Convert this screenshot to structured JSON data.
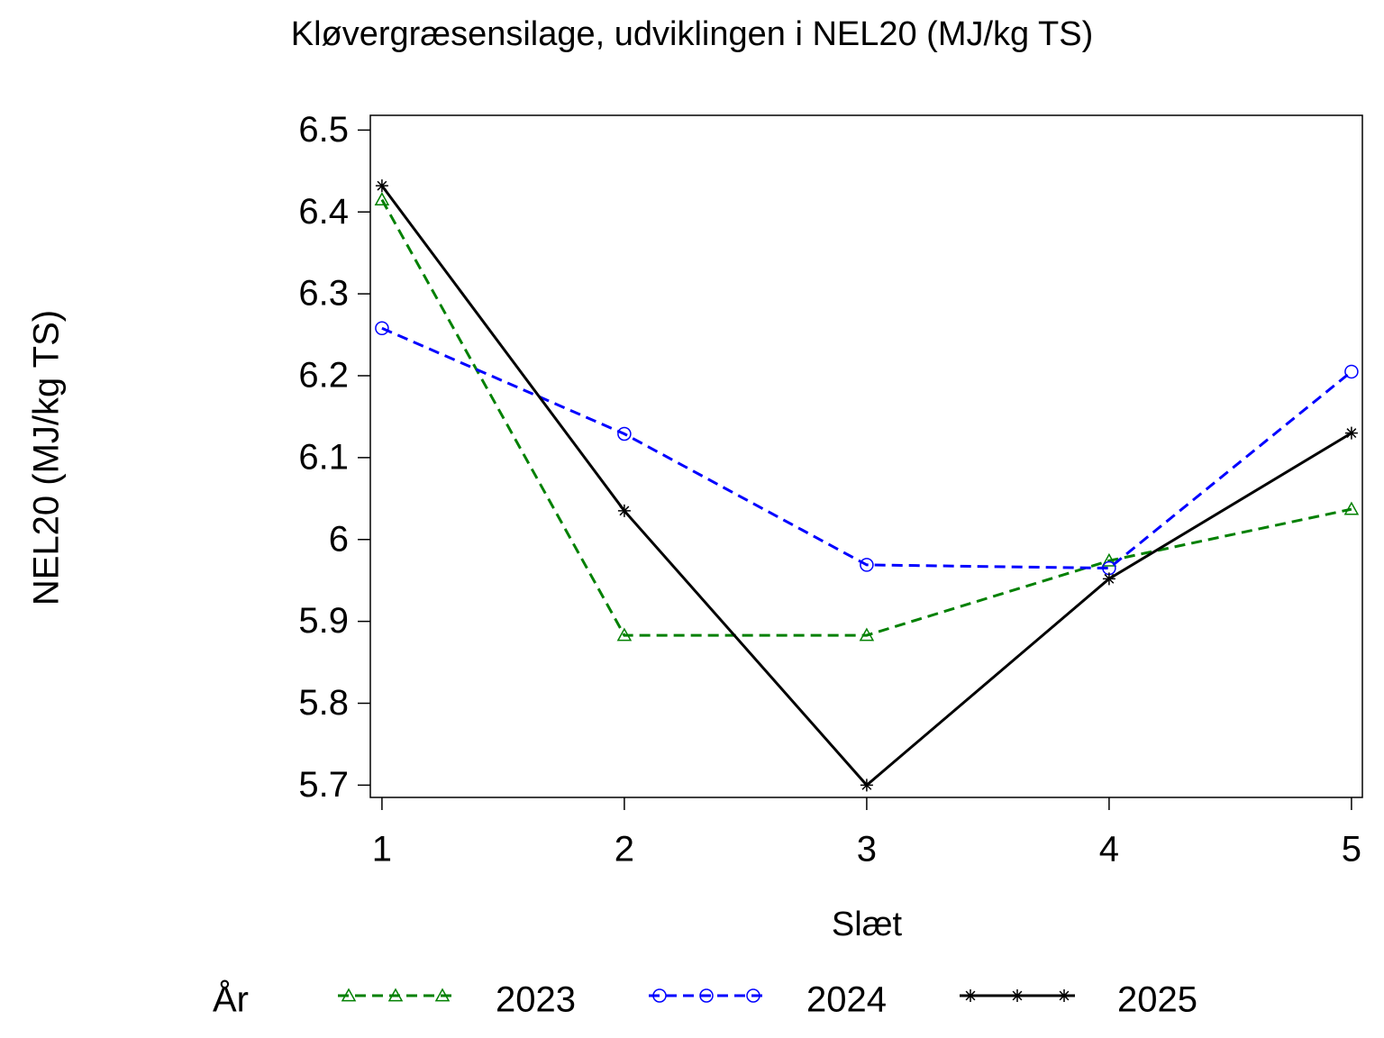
{
  "chart_data": {
    "type": "line",
    "title": "Kløvergræsensilage,  udviklingen  i  NEL20  (MJ/kg  TS)",
    "x_label": "Slæt",
    "y_label": "NEL20  (MJ/kg  TS)",
    "legend_title": "År",
    "x": [
      1,
      2,
      3,
      4,
      5
    ],
    "xlim": [
      0.952,
      5.045
    ],
    "xticks": [
      1,
      2,
      3,
      4,
      5
    ],
    "ylim": [
      5.685,
      6.518
    ],
    "yticks": [
      5.7,
      5.8,
      5.9,
      6,
      6.1,
      6.2,
      6.3,
      6.4,
      6.5
    ],
    "legend": "bottom",
    "series": [
      {
        "name": "2023",
        "color": "#008000",
        "marker": "triangle",
        "dash": true,
        "values": [
          6.415,
          5.883,
          5.883,
          5.974,
          6.037
        ]
      },
      {
        "name": "2024",
        "color": "#0000ff",
        "marker": "circle",
        "dash": true,
        "values": [
          6.258,
          6.129,
          5.969,
          5.965,
          6.205
        ]
      },
      {
        "name": "2025",
        "color": "#000000",
        "marker": "star",
        "dash": false,
        "values": [
          6.432,
          6.035,
          5.7,
          5.952,
          6.13
        ]
      }
    ]
  }
}
